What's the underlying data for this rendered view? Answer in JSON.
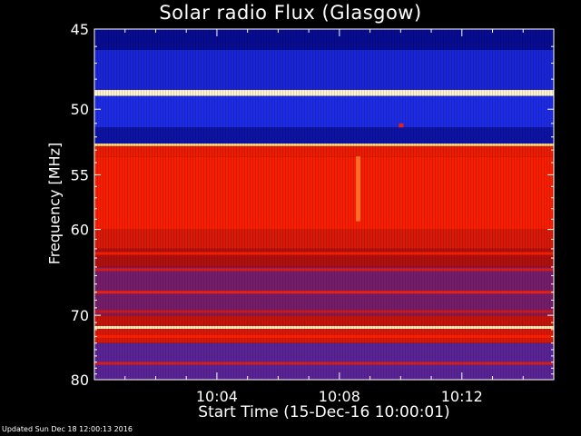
{
  "chart_data": {
    "type": "heatmap",
    "title": "Solar radio Flux (Glasgow)",
    "xlabel": "Start Time (15-Dec-16 10:00:01)",
    "ylabel": "Frequency [MHz]",
    "x_unit": "minutes after 10:00:01",
    "xlim": [
      0,
      15.0
    ],
    "ylim": [
      80,
      45
    ],
    "y_scale": "reciprocal",
    "x_ticks": [
      {
        "value": 4,
        "label": "10:04"
      },
      {
        "value": 8,
        "label": "10:08"
      },
      {
        "value": 12,
        "label": "10:12"
      }
    ],
    "y_ticks": [
      {
        "value": 45,
        "label": "45"
      },
      {
        "value": 50,
        "label": "50"
      },
      {
        "value": 55,
        "label": "55"
      },
      {
        "value": 60,
        "label": "60"
      },
      {
        "value": 70,
        "label": "70"
      },
      {
        "value": 80,
        "label": "80"
      }
    ],
    "colormap": [
      "#000070",
      "#2030f0",
      "#b01010",
      "#ff2000",
      "#ffd060",
      "#fffff0"
    ],
    "frequency_bands": [
      {
        "from": 45.0,
        "to": 46.2,
        "level": 0.05
      },
      {
        "from": 46.2,
        "to": 48.7,
        "level": 0.16
      },
      {
        "from": 48.7,
        "to": 49.1,
        "level": 0.95
      },
      {
        "from": 49.1,
        "to": 51.3,
        "level": 0.18
      },
      {
        "from": 51.3,
        "to": 52.5,
        "level": 0.08
      },
      {
        "from": 52.5,
        "to": 52.7,
        "level": 0.85
      },
      {
        "from": 52.7,
        "to": 53.5,
        "level": 0.55
      },
      {
        "from": 53.5,
        "to": 60.0,
        "level": 0.58
      },
      {
        "from": 60.0,
        "to": 62.0,
        "level": 0.5
      },
      {
        "from": 62.0,
        "to": 64.0,
        "level": 0.4
      },
      {
        "from": 64.0,
        "to": 70.0,
        "level": 0.32
      },
      {
        "from": 70.0,
        "to": 71.5,
        "level": 0.45
      },
      {
        "from": 71.5,
        "to": 71.9,
        "level": 0.92
      },
      {
        "from": 71.9,
        "to": 74.0,
        "level": 0.5
      },
      {
        "from": 74.0,
        "to": 80.0,
        "level": 0.28
      }
    ],
    "narrow_lines": [
      {
        "freq": 62.5,
        "level": 0.6
      },
      {
        "freq": 64.3,
        "level": 0.55
      },
      {
        "freq": 67.0,
        "level": 0.6
      },
      {
        "freq": 69.5,
        "level": 0.5
      },
      {
        "freq": 73.0,
        "level": 0.6
      },
      {
        "freq": 77.2,
        "level": 0.55
      }
    ],
    "bursts": [
      {
        "time": 8.6,
        "freq_from": 53.5,
        "freq_to": 59.2,
        "level": 0.7
      },
      {
        "time": 10.0,
        "freq_from": 51.0,
        "freq_to": 51.3,
        "level": 0.6
      }
    ]
  },
  "footer": "Updated Sun Dec 18 12:00:13 2016"
}
